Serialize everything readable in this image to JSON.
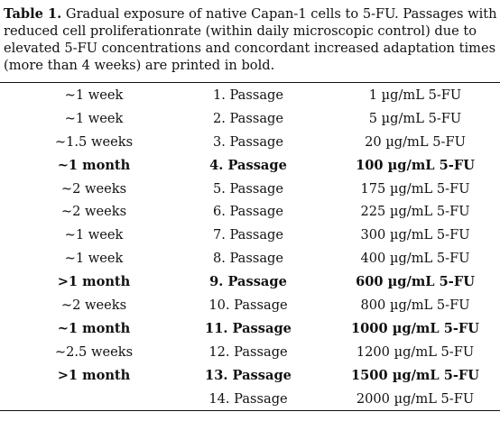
{
  "caption": {
    "label": "Table 1.",
    "text": " Gradual exposure of native Capan-1 cells to 5-FU.  Passages with reduced cell proliferationrate (within daily microscopic control) due to elevated 5-FU concentrations and concordant increased adaptation times (more than 4 weeks) are printed in bold."
  },
  "rows": [
    {
      "time": "~1 week",
      "passage": "1. Passage",
      "concentration": "1 µg/mL 5-FU",
      "bold": false
    },
    {
      "time": "~1 week",
      "passage": "2. Passage",
      "concentration": "5 µg/mL 5-FU",
      "bold": false
    },
    {
      "time": "~1.5 weeks",
      "passage": "3. Passage",
      "concentration": "20 µg/mL 5-FU",
      "bold": false
    },
    {
      "time": "~1 month",
      "passage": "4. Passage",
      "concentration": "100 µg/mL 5-FU",
      "bold": true
    },
    {
      "time": "~2 weeks",
      "passage": "5. Passage",
      "concentration": "175 µg/mL 5-FU",
      "bold": false
    },
    {
      "time": "~2 weeks",
      "passage": "6. Passage",
      "concentration": "225 µg/mL 5-FU",
      "bold": false
    },
    {
      "time": "~1 week",
      "passage": "7. Passage",
      "concentration": "300 µg/mL 5-FU",
      "bold": false
    },
    {
      "time": "~1 week",
      "passage": "8. Passage",
      "concentration": "400 µg/mL 5-FU",
      "bold": false
    },
    {
      "time": ">1 month",
      "passage": "9. Passage",
      "concentration": "600 µg/mL 5-FU",
      "bold": true
    },
    {
      "time": "~2 weeks",
      "passage": "10. Passage",
      "concentration": "800 µg/mL 5-FU",
      "bold": false
    },
    {
      "time": "~1 month",
      "passage": "11. Passage",
      "concentration": "1000 µg/mL 5-FU",
      "bold": true
    },
    {
      "time": "~2.5 weeks",
      "passage": "12. Passage",
      "concentration": "1200 µg/mL 5-FU",
      "bold": false
    },
    {
      "time": ">1 month",
      "passage": "13. Passage",
      "concentration": "1500 µg/mL 5-FU",
      "bold": true
    },
    {
      "time": "",
      "passage": "14. Passage",
      "concentration": "2000 µg/mL 5-FU",
      "bold": false
    }
  ]
}
